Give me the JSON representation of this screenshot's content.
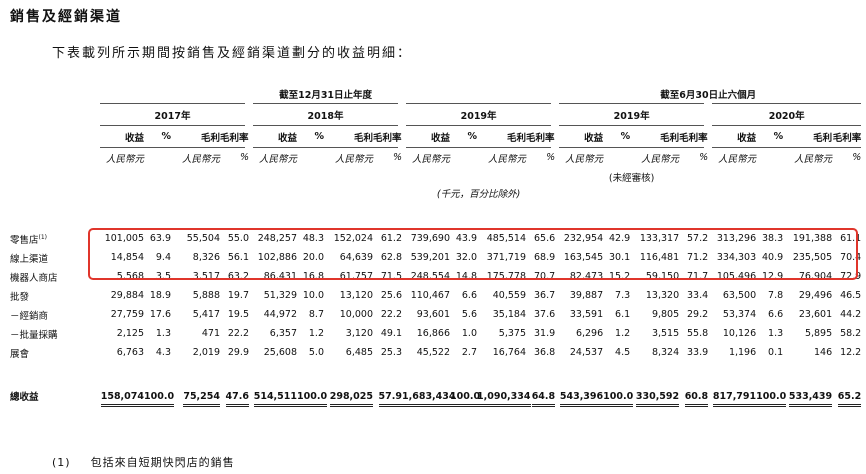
{
  "title": "銷售及經銷渠道",
  "intro": "下表載列所示期間按銷售及經銷渠道劃分的收益明細：",
  "table": {
    "group_headers": [
      "截至12月31日止年度",
      "截至6月30日止六個月"
    ],
    "periods": [
      "2017年",
      "2018年",
      "2019年",
      "2019年",
      "2020年"
    ],
    "column_headers": [
      "收益",
      "%",
      "毛利",
      "毛利率"
    ],
    "units": {
      "revenue": "人民幣元",
      "gross_profit": "人民幣元",
      "margin": "%"
    },
    "unaudited_note": "(未經審核)",
    "unit_note": "(千元，百分比除外)",
    "rows": [
      {
        "label": "零售店",
        "note": "(1)",
        "cells": [
          "101,005",
          "63.9",
          "55,504",
          "55.0",
          "248,257",
          "48.3",
          "152,024",
          "61.2",
          "739,690",
          "43.9",
          "485,514",
          "65.6",
          "232,954",
          "42.9",
          "133,317",
          "57.2",
          "313,296",
          "38.3",
          "191,388",
          "61.1"
        ]
      },
      {
        "label": "線上渠道",
        "cells": [
          "14,854",
          "9.4",
          "8,326",
          "56.1",
          "102,886",
          "20.0",
          "64,639",
          "62.8",
          "539,201",
          "32.0",
          "371,719",
          "68.9",
          "163,545",
          "30.1",
          "116,481",
          "71.2",
          "334,303",
          "40.9",
          "235,505",
          "70.4"
        ]
      },
      {
        "label": "機器人商店",
        "cells": [
          "5,568",
          "3.5",
          "3,517",
          "63.2",
          "86,431",
          "16.8",
          "61,757",
          "71.5",
          "248,554",
          "14.8",
          "175,778",
          "70.7",
          "82,473",
          "15.2",
          "59,150",
          "71.7",
          "105,496",
          "12.9",
          "76,904",
          "72.9"
        ]
      },
      {
        "label": "批發",
        "cells": [
          "29,884",
          "18.9",
          "5,888",
          "19.7",
          "51,329",
          "10.0",
          "13,120",
          "25.6",
          "110,467",
          "6.6",
          "40,559",
          "36.7",
          "39,887",
          "7.3",
          "13,320",
          "33.4",
          "63,500",
          "7.8",
          "29,496",
          "46.5"
        ]
      },
      {
        "label": "－經銷商",
        "cells": [
          "27,759",
          "17.6",
          "5,417",
          "19.5",
          "44,972",
          "8.7",
          "10,000",
          "22.2",
          "93,601",
          "5.6",
          "35,184",
          "37.6",
          "33,591",
          "6.1",
          "9,805",
          "29.2",
          "53,374",
          "6.6",
          "23,601",
          "44.2"
        ]
      },
      {
        "label": "－批量採購",
        "cells": [
          "2,125",
          "1.3",
          "471",
          "22.2",
          "6,357",
          "1.2",
          "3,120",
          "49.1",
          "16,866",
          "1.0",
          "5,375",
          "31.9",
          "6,296",
          "1.2",
          "3,515",
          "55.8",
          "10,126",
          "1.3",
          "5,895",
          "58.2"
        ]
      },
      {
        "label": "展會",
        "cells": [
          "6,763",
          "4.3",
          "2,019",
          "29.9",
          "25,608",
          "5.0",
          "6,485",
          "25.3",
          "45,522",
          "2.7",
          "16,764",
          "36.8",
          "24,537",
          "4.5",
          "8,324",
          "33.9",
          "1,196",
          "0.1",
          "146",
          "12.2"
        ]
      }
    ],
    "total": {
      "label": "總收益",
      "cells": [
        "158,074",
        "100.0",
        "75,254",
        "47.6",
        "514,511",
        "100.0",
        "298,025",
        "57.9",
        "1,683,434",
        "100.0",
        "1,090,334",
        "64.8",
        "543,396",
        "100.0",
        "330,592",
        "60.8",
        "817,791",
        "100.0",
        "533,439",
        "65.2"
      ]
    }
  },
  "footnote": {
    "marker": "(1)",
    "text": "包括來自短期快閃店的銷售"
  }
}
